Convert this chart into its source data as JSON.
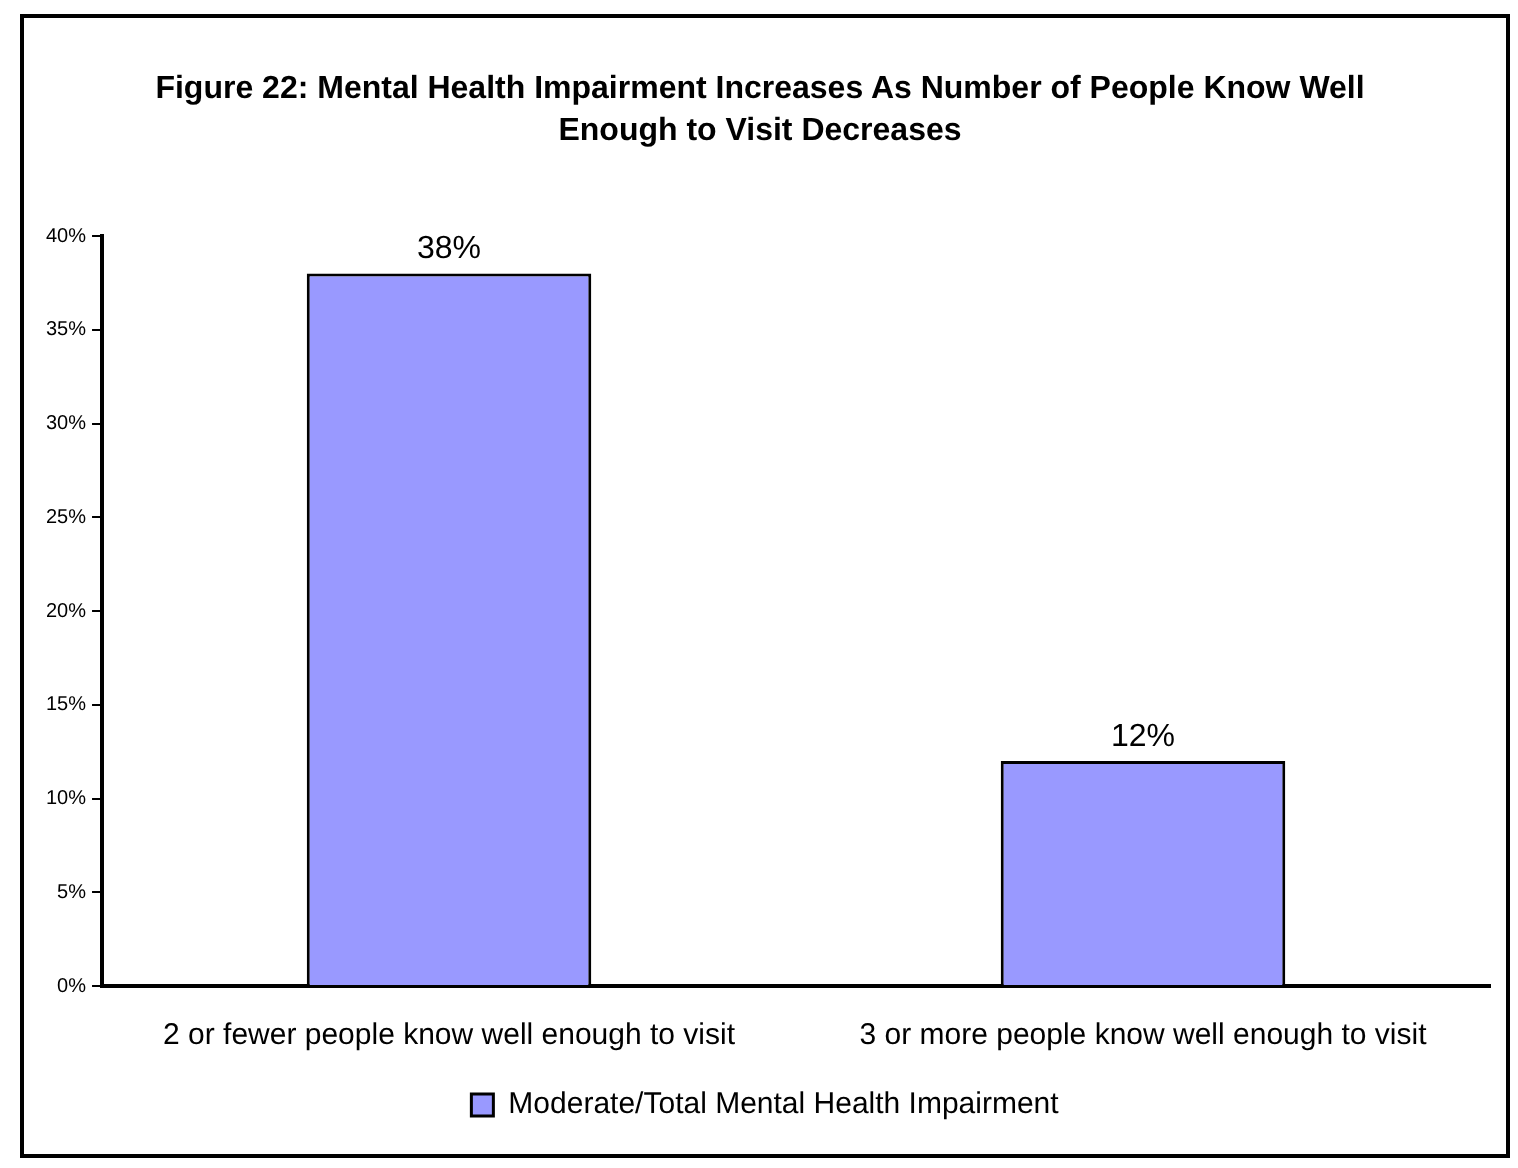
{
  "chart_data": {
    "type": "bar",
    "title": "Figure 22:  Mental Health Impairment Increases As Number of People Know Well Enough to Visit Decreases",
    "categories": [
      "2 or fewer people know well enough to visit",
      "3 or more people know well enough to visit"
    ],
    "series": [
      {
        "name": "Moderate/Total Mental Health Impairment",
        "color": "#9999ff",
        "values": [
          38,
          12
        ],
        "value_labels": [
          "38%",
          "12%"
        ]
      }
    ],
    "ylim": [
      0,
      40
    ],
    "yticks": [
      {
        "value": 0,
        "label": "0%"
      },
      {
        "value": 5,
        "label": "5%"
      },
      {
        "value": 10,
        "label": "10%"
      },
      {
        "value": 15,
        "label": "15%"
      },
      {
        "value": 20,
        "label": "20%"
      },
      {
        "value": 25,
        "label": "25%"
      },
      {
        "value": 30,
        "label": "30%"
      },
      {
        "value": 35,
        "label": "35%"
      },
      {
        "value": 40,
        "label": "40%"
      }
    ],
    "grid": false,
    "legend": "bottom"
  }
}
